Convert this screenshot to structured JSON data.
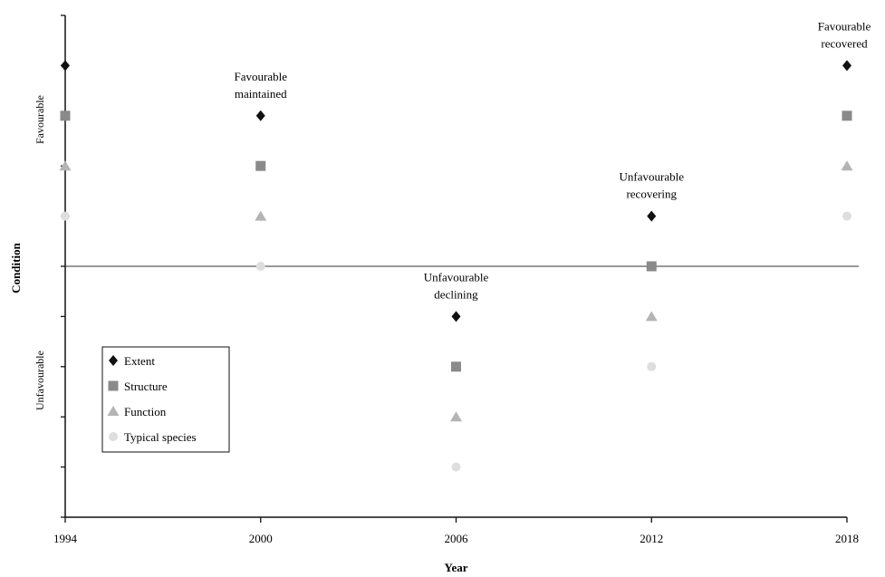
{
  "chart_data": {
    "type": "scatter",
    "xlabel": "Year",
    "ylabel": "Condition",
    "x_ticks": [
      "1994",
      "2000",
      "2006",
      "2012",
      "2018"
    ],
    "x": [
      1994,
      2000,
      2006,
      2012,
      2018
    ],
    "ylim": [
      -5,
      5
    ],
    "threshold": 0,
    "zone_labels": {
      "upper": "Favourable",
      "lower": "Unfavourable"
    },
    "series": [
      {
        "name": "Extent",
        "marker": "diamond",
        "color": "#111111",
        "points": [
          [
            1994,
            4
          ],
          [
            2000,
            3
          ],
          [
            2006,
            -1
          ],
          [
            2012,
            1
          ],
          [
            2018,
            4
          ]
        ]
      },
      {
        "name": "Structure",
        "marker": "square",
        "color": "#8a8a8a",
        "points": [
          [
            1994,
            3
          ],
          [
            2000,
            2
          ],
          [
            2006,
            -2
          ],
          [
            2012,
            0
          ],
          [
            2018,
            3
          ]
        ]
      },
      {
        "name": "Function",
        "marker": "triangle",
        "color": "#b4b4b4",
        "points": [
          [
            1994,
            2
          ],
          [
            2000,
            1
          ],
          [
            2006,
            -3
          ],
          [
            2012,
            -1
          ],
          [
            2018,
            2
          ]
        ]
      },
      {
        "name": "Typical species",
        "marker": "circle",
        "color": "#dedede",
        "points": [
          [
            1994,
            1
          ],
          [
            2000,
            0
          ],
          [
            2006,
            -4
          ],
          [
            2012,
            -2
          ],
          [
            2018,
            1
          ]
        ]
      }
    ],
    "annotations": [
      {
        "year": 2000,
        "lines": [
          "Favourable",
          "maintained"
        ]
      },
      {
        "year": 2006,
        "lines": [
          "Unfavourable",
          "declining"
        ]
      },
      {
        "year": 2012,
        "lines": [
          "Unfavourable",
          "recovering"
        ]
      },
      {
        "year": 2018,
        "lines": [
          "Favourable",
          "recovered"
        ]
      }
    ],
    "legend_position": "lower-left",
    "grid": false
  }
}
